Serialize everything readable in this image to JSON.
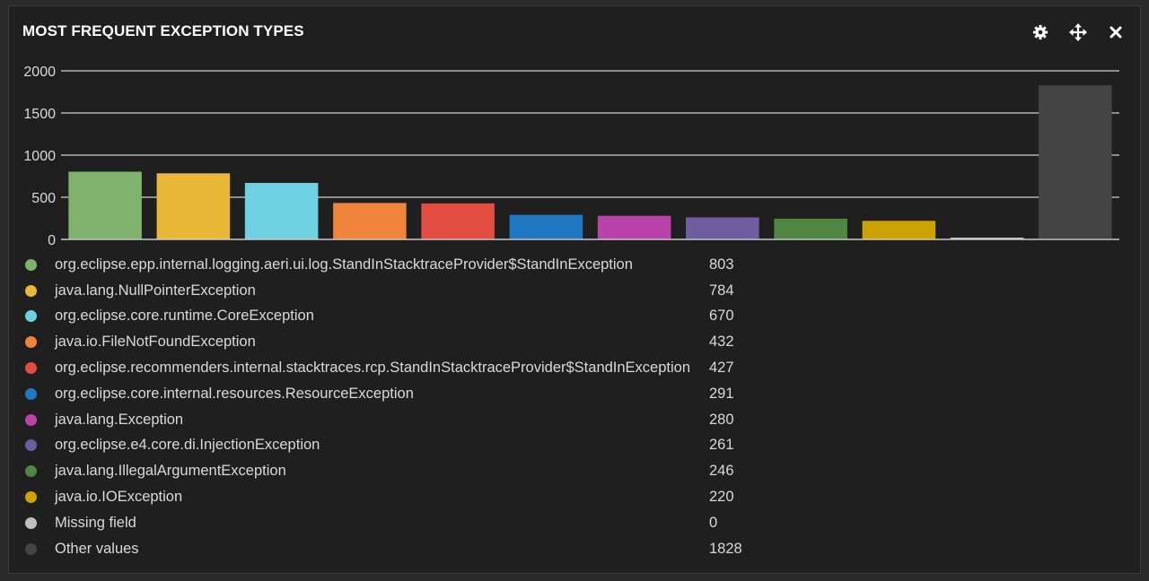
{
  "panel": {
    "title": "MOST FREQUENT EXCEPTION TYPES",
    "tools": [
      {
        "name": "gear-icon"
      },
      {
        "name": "move-icon"
      },
      {
        "name": "close-icon"
      }
    ]
  },
  "chart_data": {
    "type": "bar",
    "title": "MOST FREQUENT EXCEPTION TYPES",
    "xlabel": "",
    "ylabel": "",
    "ylim": [
      0,
      2000
    ],
    "yticks": [
      0,
      500,
      1000,
      1500,
      2000
    ],
    "ytick_labels": [
      "0",
      "500",
      "1000",
      "1500",
      "2000"
    ],
    "grid": true,
    "legend_placement": "bottom",
    "categories": [
      "org.eclipse.epp.internal.logging.aeri.ui.log.StandInStacktraceProvider$StandInException",
      "java.lang.NullPointerException",
      "org.eclipse.core.runtime.CoreException",
      "java.io.FileNotFoundException",
      "org.eclipse.recommenders.internal.stacktraces.rcp.StandInStacktraceProvider$StandInException",
      "org.eclipse.core.internal.resources.ResourceException",
      "java.lang.Exception",
      "org.eclipse.e4.core.di.InjectionException",
      "java.lang.IllegalArgumentException",
      "java.io.IOException",
      "Missing field",
      "Other values"
    ],
    "values": [
      803,
      784,
      670,
      432,
      427,
      291,
      280,
      261,
      246,
      220,
      0,
      1828
    ],
    "value_labels": [
      "803",
      "784",
      "670",
      "432",
      "427",
      "291",
      "280",
      "261",
      "246",
      "220",
      "0",
      "1828"
    ],
    "colors": [
      "#7eb26d",
      "#eab839",
      "#6ed0e0",
      "#ef843c",
      "#e24d42",
      "#1f78c1",
      "#ba43a9",
      "#705da0",
      "#508642",
      "#cca300",
      "#bfbfbf",
      "#444444"
    ]
  }
}
